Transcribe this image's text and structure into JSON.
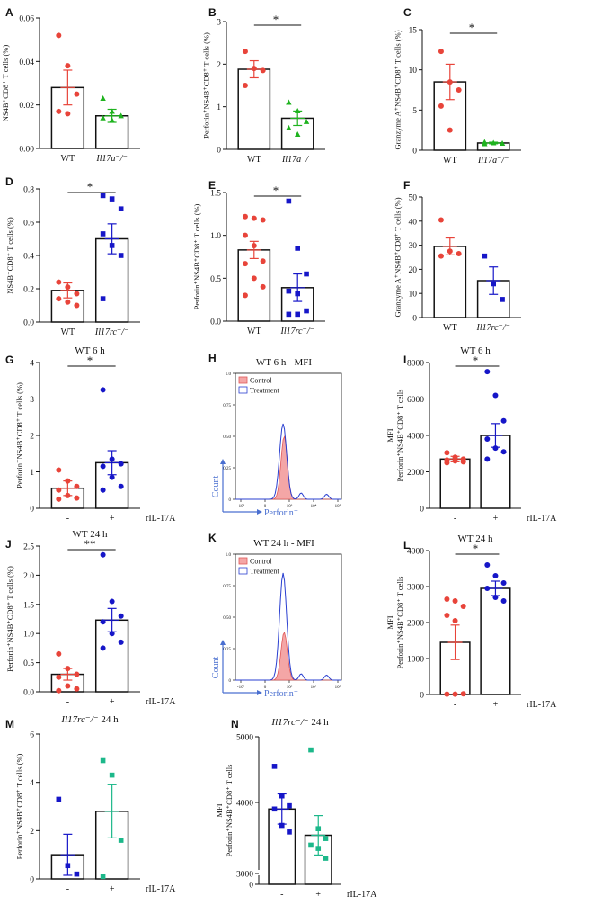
{
  "figure": {
    "background": "#ffffff"
  },
  "colors": {
    "wt": "#e8443a",
    "ko": "#1616c8",
    "green": "#1fb31f",
    "teal": "#1cb88a",
    "axis": "#111111",
    "fill": "#f4a6a6"
  },
  "chart_data": [
    {
      "id": "A",
      "type": "bar",
      "ylabel": "NS4B⁺CD8⁺ T cells (%)",
      "ylim": [
        0,
        0.06
      ],
      "ticks": [
        0,
        0.02,
        0.04,
        0.06
      ],
      "tick_labels": [
        "0.00",
        "0.02",
        "0.04",
        "0.06"
      ],
      "categories": [
        "WT",
        "Il17a⁻/⁻"
      ],
      "italic": [
        false,
        true
      ],
      "series": [
        {
          "name": "WT",
          "mean": 0.028,
          "sem": 0.008,
          "color": "#e8443a",
          "marker": "circle",
          "points": [
            0.052,
            0.038,
            0.025,
            0.017,
            0.016
          ]
        },
        {
          "name": "Il17a-/-",
          "mean": 0.015,
          "sem": 0.003,
          "color": "#1fb31f",
          "marker": "triangle",
          "points": [
            0.023,
            0.017,
            0.015,
            0.014,
            0.013
          ]
        }
      ],
      "sig": null
    },
    {
      "id": "B",
      "type": "bar",
      "ylabel": "Perforin⁺NS4B⁺CD8⁺ T cells (%)",
      "ylim": [
        0,
        3
      ],
      "ticks": [
        0,
        1,
        2,
        3
      ],
      "tick_labels": [
        "0",
        "1",
        "2",
        "3"
      ],
      "categories": [
        "WT",
        "Il17a⁻/⁻"
      ],
      "italic": [
        false,
        true
      ],
      "series": [
        {
          "name": "WT",
          "mean": 1.88,
          "sem": 0.2,
          "color": "#e8443a",
          "marker": "circle",
          "points": [
            2.3,
            1.9,
            1.85,
            1.5
          ]
        },
        {
          "name": "Il17a-/-",
          "mean": 0.73,
          "sem": 0.17,
          "color": "#1fb31f",
          "marker": "triangle",
          "points": [
            1.1,
            0.9,
            0.65,
            0.5,
            0.35
          ]
        }
      ],
      "sig": "*"
    },
    {
      "id": "C",
      "type": "bar",
      "ylabel": "Granzyme A⁺NS4B⁺CD8⁺ T cells (%)",
      "ylim": [
        0,
        15
      ],
      "ticks": [
        0,
        5,
        10,
        15
      ],
      "tick_labels": [
        "0",
        "5",
        "10",
        "15"
      ],
      "categories": [
        "WT",
        "Il17a⁻/⁻"
      ],
      "italic": [
        false,
        true
      ],
      "series": [
        {
          "name": "WT",
          "mean": 8.5,
          "sem": 2.2,
          "color": "#e8443a",
          "marker": "circle",
          "points": [
            12.3,
            8.5,
            7.5,
            5.5,
            2.5
          ]
        },
        {
          "name": "Il17a-/-",
          "mean": 0.9,
          "sem": 0.1,
          "color": "#1fb31f",
          "marker": "triangle",
          "points": [
            1.0,
            0.9,
            0.85,
            0.8
          ]
        }
      ],
      "sig": "*"
    },
    {
      "id": "D",
      "type": "bar",
      "ylabel": "NS4B⁺CD8⁺ T cells (%)",
      "ylim": [
        0,
        0.8
      ],
      "ticks": [
        0,
        0.2,
        0.4,
        0.6,
        0.8
      ],
      "tick_labels": [
        "0.0",
        "0.2",
        "0.4",
        "0.6",
        "0.8"
      ],
      "categories": [
        "WT",
        "Il17rc⁻/⁻"
      ],
      "italic": [
        false,
        true
      ],
      "series": [
        {
          "name": "WT",
          "mean": 0.19,
          "sem": 0.045,
          "color": "#e8443a",
          "marker": "circle",
          "points": [
            0.24,
            0.21,
            0.17,
            0.14,
            0.12,
            0.1
          ]
        },
        {
          "name": "Il17rc-/-",
          "mean": 0.5,
          "sem": 0.09,
          "color": "#1616c8",
          "marker": "square",
          "points": [
            0.76,
            0.74,
            0.68,
            0.53,
            0.46,
            0.4,
            0.14
          ]
        }
      ],
      "sig": "*"
    },
    {
      "id": "E",
      "type": "bar",
      "ylabel": "Perforin⁺NS4B⁺CD8⁺ T cells (%)",
      "ylim": [
        0,
        1.5
      ],
      "ticks": [
        0,
        0.5,
        1,
        1.5
      ],
      "tick_labels": [
        "0.0",
        "0.5",
        "1.0",
        "1.5"
      ],
      "categories": [
        "WT",
        "Il17rc⁻/⁻"
      ],
      "italic": [
        false,
        true
      ],
      "series": [
        {
          "name": "WT",
          "mean": 0.83,
          "sem": 0.1,
          "color": "#e8443a",
          "marker": "circle",
          "points": [
            1.22,
            1.2,
            1.18,
            1.0,
            0.88,
            0.7,
            0.67,
            0.5,
            0.4,
            0.3
          ]
        },
        {
          "name": "Il17rc-/-",
          "mean": 0.39,
          "sem": 0.16,
          "color": "#1616c8",
          "marker": "square",
          "points": [
            1.4,
            0.85,
            0.55,
            0.35,
            0.32,
            0.12,
            0.08,
            0.08
          ]
        }
      ],
      "sig": "*"
    },
    {
      "id": "F",
      "type": "bar",
      "ylabel": "Granzyme A⁺NS4B⁺CD8⁺ T cells (%)",
      "ylim": [
        0,
        50
      ],
      "ticks": [
        0,
        10,
        20,
        30,
        40,
        50
      ],
      "tick_labels": [
        "0",
        "10",
        "20",
        "30",
        "40",
        "50"
      ],
      "categories": [
        "WT",
        "Il17rc⁻/⁻"
      ],
      "italic": [
        false,
        true
      ],
      "series": [
        {
          "name": "WT",
          "mean": 29.5,
          "sem": 3.5,
          "color": "#e8443a",
          "marker": "circle",
          "points": [
            40.5,
            27.5,
            26.5,
            25.5
          ]
        },
        {
          "name": "Il17rc-/-",
          "mean": 15.3,
          "sem": 5.7,
          "color": "#1616c8",
          "marker": "square",
          "points": [
            25.5,
            14,
            7.5
          ]
        }
      ],
      "sig": null
    },
    {
      "id": "G",
      "type": "bar",
      "title": "WT   6 h",
      "ylabel": "Perforin⁺NS4B⁺CD8⁺ T cells (%)",
      "ylim": [
        0,
        4
      ],
      "ticks": [
        0,
        1,
        2,
        3,
        4
      ],
      "tick_labels": [
        "0",
        "1",
        "2",
        "3",
        "4"
      ],
      "categories": [
        "-",
        "+"
      ],
      "italic": [
        false,
        false
      ],
      "treatment_label": "rIL-17A",
      "series": [
        {
          "name": "-",
          "mean": 0.55,
          "sem": 0.2,
          "color": "#e8443a",
          "marker": "circle",
          "points": [
            1.05,
            0.75,
            0.6,
            0.5,
            0.35,
            0.28,
            0.25
          ]
        },
        {
          "name": "+",
          "mean": 1.25,
          "sem": 0.33,
          "color": "#1616c8",
          "marker": "circle",
          "points": [
            3.25,
            1.35,
            1.22,
            1.15,
            0.85,
            0.6,
            0.5
          ]
        }
      ],
      "sig": "*"
    },
    {
      "id": "H",
      "type": "histogram",
      "title": "WT   6 h - MFI",
      "xlabel": "Perforin⁺",
      "ylabel": "Count",
      "ticks": [
        0,
        0.25,
        0.5,
        0.75,
        1.0
      ],
      "tick_labels": [
        "0",
        "0.25",
        "0.50",
        "0.75",
        "1.0"
      ],
      "xticks": [
        "-10³",
        "0",
        "10³",
        "10⁴",
        "10⁵"
      ],
      "legend": [
        "Control",
        "Treatment"
      ],
      "control_peak": {
        "center": 0.46,
        "height": 0.5
      },
      "treatment_peak": {
        "center": 0.45,
        "height": 0.6
      }
    },
    {
      "id": "I",
      "type": "bar",
      "title": "WT   6 h",
      "ylabel": "MFI Perforin⁺NS4B⁺CD8⁺ T cells",
      "ylim": [
        0,
        8000
      ],
      "ticks": [
        0,
        2000,
        4000,
        6000,
        8000
      ],
      "tick_labels": [
        "0",
        "2000",
        "4000",
        "6000",
        "8000"
      ],
      "categories": [
        "-",
        "+"
      ],
      "italic": [
        false,
        false
      ],
      "treatment_label": "rIL-17A",
      "series": [
        {
          "name": "-",
          "mean": 2700,
          "sem": 150,
          "color": "#e8443a",
          "marker": "circle",
          "points": [
            3050,
            2800,
            2700,
            2650,
            2600,
            2550,
            2500
          ]
        },
        {
          "name": "+",
          "mean": 4000,
          "sem": 650,
          "color": "#1616c8",
          "marker": "circle",
          "points": [
            7500,
            6200,
            4800,
            3800,
            3300,
            3100,
            2700
          ]
        }
      ],
      "sig": "*"
    },
    {
      "id": "J",
      "type": "bar",
      "title": "WT   24 h",
      "ylabel": "Perforin⁺NS4B⁺CD8⁺ T cells (%)",
      "ylim": [
        0,
        2.5
      ],
      "ticks": [
        0,
        0.5,
        1,
        1.5,
        2,
        2.5
      ],
      "tick_labels": [
        "0.0",
        "0.5",
        "1.0",
        "1.5",
        "2.0",
        "2.5"
      ],
      "categories": [
        "-",
        "+"
      ],
      "italic": [
        false,
        false
      ],
      "treatment_label": "rIL-17A",
      "series": [
        {
          "name": "-",
          "mean": 0.3,
          "sem": 0.1,
          "color": "#e8443a",
          "marker": "circle",
          "points": [
            0.65,
            0.4,
            0.3,
            0.25,
            0.1,
            0.05,
            0.02
          ]
        },
        {
          "name": "+",
          "mean": 1.23,
          "sem": 0.2,
          "color": "#1616c8",
          "marker": "circle",
          "points": [
            2.35,
            1.55,
            1.3,
            1.2,
            1.0,
            0.85,
            0.75
          ]
        }
      ],
      "sig": "**"
    },
    {
      "id": "K",
      "type": "histogram",
      "title": "WT   24 h - MFI",
      "xlabel": "Perforin⁺",
      "ylabel": "Count",
      "ticks": [
        0,
        0.25,
        0.5,
        0.75,
        1.0
      ],
      "tick_labels": [
        "0",
        "0.25",
        "0.50",
        "0.75",
        "1.0"
      ],
      "xticks": [
        "-10³",
        "0",
        "10³",
        "10⁴",
        "10⁵"
      ],
      "legend": [
        "Control",
        "Treatment"
      ],
      "control_peak": {
        "center": 0.46,
        "height": 0.38
      },
      "treatment_peak": {
        "center": 0.45,
        "height": 0.85
      }
    },
    {
      "id": "L",
      "type": "bar",
      "title": "WT   24 h",
      "ylabel": "MFI Perforin⁺NS4B⁺CD8⁺ T cells",
      "ylim": [
        0,
        4000
      ],
      "ticks": [
        0,
        1000,
        2000,
        3000,
        4000
      ],
      "tick_labels": [
        "0",
        "1000",
        "2000",
        "3000",
        "4000"
      ],
      "categories": [
        "-",
        "+"
      ],
      "italic": [
        false,
        false
      ],
      "treatment_label": "rIL-17A",
      "series": [
        {
          "name": "-",
          "mean": 1450,
          "sem": 480,
          "color": "#e8443a",
          "marker": "circle",
          "points": [
            2650,
            2600,
            2450,
            2200,
            2050,
            20,
            10,
            10
          ]
        },
        {
          "name": "+",
          "mean": 2950,
          "sem": 200,
          "color": "#1616c8",
          "marker": "circle",
          "points": [
            3600,
            3300,
            3100,
            2950,
            2700,
            2600
          ]
        }
      ],
      "sig": "*"
    },
    {
      "id": "M",
      "type": "bar",
      "title_italic": "Il17rc⁻/⁻",
      "title_rest": "   24 h",
      "ylabel": "Perforin⁺NS4B⁺CD8⁺ T cells (%)",
      "ylim": [
        0,
        6
      ],
      "ticks": [
        0,
        2,
        4,
        6
      ],
      "tick_labels": [
        "0",
        "2",
        "4",
        "6"
      ],
      "categories": [
        "-",
        "+"
      ],
      "italic": [
        false,
        false
      ],
      "treatment_label": "rIL-17A",
      "series": [
        {
          "name": "-",
          "mean": 1.0,
          "sem": 0.85,
          "color": "#1616c8",
          "marker": "square",
          "points": [
            3.3,
            0.55,
            0.2
          ]
        },
        {
          "name": "+",
          "mean": 2.8,
          "sem": 1.1,
          "color": "#1cb88a",
          "marker": "square",
          "points": [
            4.9,
            4.3,
            1.6,
            0.1
          ]
        }
      ],
      "sig": null
    },
    {
      "id": "N",
      "type": "bar",
      "title_italic": "Il17rc⁻/⁻",
      "title_rest": "   24 h",
      "ylabel": "MFI Perforin⁺NS4B⁺CD8⁺ T cells",
      "ylim": [
        0,
        5000
      ],
      "ticks": [
        0,
        3000,
        4000,
        5000
      ],
      "tick_labels": [
        "0",
        "3000",
        "4000",
        "5000"
      ],
      "axis_break": true,
      "break_lo": 3000,
      "categories": [
        "-",
        "+"
      ],
      "italic": [
        false,
        false
      ],
      "treatment_label": "rIL-17A",
      "series": [
        {
          "name": "-",
          "mean": 3900,
          "sem": 230,
          "color": "#1616c8",
          "marker": "square",
          "points": [
            4550,
            4100,
            3950,
            3900,
            3650,
            3550
          ]
        },
        {
          "name": "+",
          "mean": 3500,
          "sem": 300,
          "color": "#1cb88a",
          "marker": "square",
          "points": [
            4800,
            3600,
            3450,
            3350,
            3300,
            3150
          ]
        }
      ],
      "sig": null
    }
  ]
}
